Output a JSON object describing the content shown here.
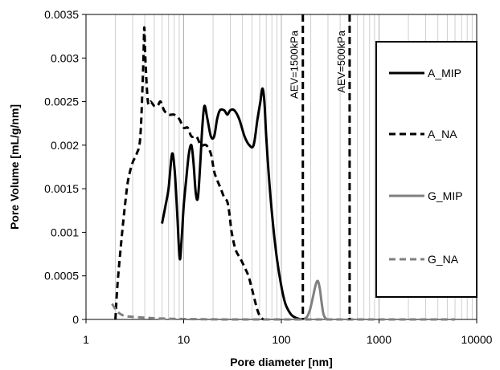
{
  "chart_data": {
    "type": "line",
    "title": "",
    "xlabel": "Pore diameter [nm]",
    "ylabel": "Pore Volume  [mL/g/nm]",
    "x_scale": "log",
    "xlim": [
      1,
      10000
    ],
    "ylim": [
      0,
      0.0035
    ],
    "x_ticks": [
      "1",
      "10",
      "100",
      "1000",
      "10000"
    ],
    "y_ticks": [
      "0",
      "0.0005",
      "0.001",
      "0.0015",
      "0.002",
      "0.0025",
      "0.003",
      "0.0035"
    ],
    "grid": "vertical minor gridlines on log x-axis",
    "legend_position": "right",
    "colors": {
      "A": "#000000",
      "G": "#808080"
    },
    "series": [
      {
        "name": "A_MIP",
        "color": "#000000",
        "dash": "solid",
        "points": [
          [
            6,
            0.0011
          ],
          [
            6.5,
            0.0013
          ],
          [
            7,
            0.0015
          ],
          [
            7.6,
            0.0019
          ],
          [
            8.1,
            0.0017
          ],
          [
            8.6,
            0.0012
          ],
          [
            9.1,
            0.0007
          ],
          [
            9.5,
            0.0009
          ],
          [
            10,
            0.0013
          ],
          [
            10.6,
            0.0016
          ],
          [
            11.3,
            0.0019
          ],
          [
            12,
            0.002
          ],
          [
            12.6,
            0.0018
          ],
          [
            13.3,
            0.00145
          ],
          [
            14,
            0.0014
          ],
          [
            14.8,
            0.0018
          ],
          [
            15.5,
            0.0022
          ],
          [
            16.3,
            0.00245
          ],
          [
            17.5,
            0.0023
          ],
          [
            19,
            0.0021
          ],
          [
            20.5,
            0.0021
          ],
          [
            22,
            0.0023
          ],
          [
            23.5,
            0.0024
          ],
          [
            26,
            0.0024
          ],
          [
            28,
            0.00235
          ],
          [
            30,
            0.0024
          ],
          [
            33,
            0.0024
          ],
          [
            37,
            0.0023
          ],
          [
            42,
            0.0021
          ],
          [
            47,
            0.002
          ],
          [
            52,
            0.002
          ],
          [
            57,
            0.0023
          ],
          [
            61,
            0.0025
          ],
          [
            64,
            0.00265
          ],
          [
            67,
            0.0025
          ],
          [
            70,
            0.0021
          ],
          [
            75,
            0.0016
          ],
          [
            82,
            0.0011
          ],
          [
            90,
            0.0007
          ],
          [
            100,
            0.00038
          ],
          [
            110,
            0.00018
          ],
          [
            125,
            6e-05
          ],
          [
            140,
            2e-05
          ],
          [
            160,
            0.0
          ]
        ]
      },
      {
        "name": "A_NA",
        "color": "#000000",
        "dash": "dashed",
        "points": [
          [
            2,
            0.0
          ],
          [
            2.1,
            0.0004
          ],
          [
            2.3,
            0.0009
          ],
          [
            2.5,
            0.0013
          ],
          [
            2.7,
            0.0016
          ],
          [
            3,
            0.0018
          ],
          [
            3.3,
            0.0019
          ],
          [
            3.6,
            0.0021
          ],
          [
            3.85,
            0.0029
          ],
          [
            3.95,
            0.00335
          ],
          [
            4.05,
            0.003
          ],
          [
            4.3,
            0.0025
          ],
          [
            4.6,
            0.0025
          ],
          [
            5,
            0.00245
          ],
          [
            5.4,
            0.00245
          ],
          [
            5.8,
            0.0025
          ],
          [
            6.3,
            0.0024
          ],
          [
            7,
            0.00235
          ],
          [
            8,
            0.00235
          ],
          [
            9,
            0.0023
          ],
          [
            10,
            0.0022
          ],
          [
            11,
            0.0022
          ],
          [
            12,
            0.0021
          ],
          [
            13.5,
            0.0021
          ],
          [
            15,
            0.002
          ],
          [
            17,
            0.002
          ],
          [
            19,
            0.0019
          ],
          [
            20.5,
            0.0017
          ],
          [
            22,
            0.0016
          ],
          [
            24,
            0.0015
          ],
          [
            26,
            0.0014
          ],
          [
            28,
            0.00135
          ],
          [
            29.5,
            0.0012
          ],
          [
            31,
            0.001
          ],
          [
            34,
            0.0008
          ],
          [
            38,
            0.0007
          ],
          [
            42,
            0.0006
          ],
          [
            46,
            0.0005
          ],
          [
            50,
            0.00035
          ],
          [
            54,
            0.0002
          ],
          [
            58,
            8e-05
          ],
          [
            62,
            2e-05
          ],
          [
            66,
            0.0
          ]
        ]
      },
      {
        "name": "G_MIP",
        "color": "#808080",
        "dash": "solid",
        "points": [
          [
            160,
            0.0
          ],
          [
            180,
            2e-05
          ],
          [
            195,
            0.0001
          ],
          [
            210,
            0.00025
          ],
          [
            225,
            0.0004
          ],
          [
            237,
            0.00044
          ],
          [
            248,
            0.00035
          ],
          [
            258,
            0.0002
          ],
          [
            270,
            6e-05
          ],
          [
            285,
            1e-05
          ],
          [
            300,
            0.0
          ]
        ]
      },
      {
        "name": "G_NA",
        "color": "#808080",
        "dash": "dashed",
        "points": [
          [
            1.85,
            0.00018
          ],
          [
            2,
            0.00012
          ],
          [
            2.2,
            7e-05
          ],
          [
            2.5,
            4e-05
          ],
          [
            3,
            3e-05
          ],
          [
            4,
            2e-05
          ],
          [
            6,
            1e-05
          ],
          [
            10,
            5e-06
          ],
          [
            30,
            0.0
          ],
          [
            300,
            0.0
          ],
          [
            3000,
            0.0
          ],
          [
            6000,
            0.0
          ]
        ]
      }
    ],
    "annotations": [
      {
        "text": "AEV=1500kPa",
        "x": 166
      },
      {
        "text": "AEV=500kPa",
        "x": 500
      }
    ]
  }
}
